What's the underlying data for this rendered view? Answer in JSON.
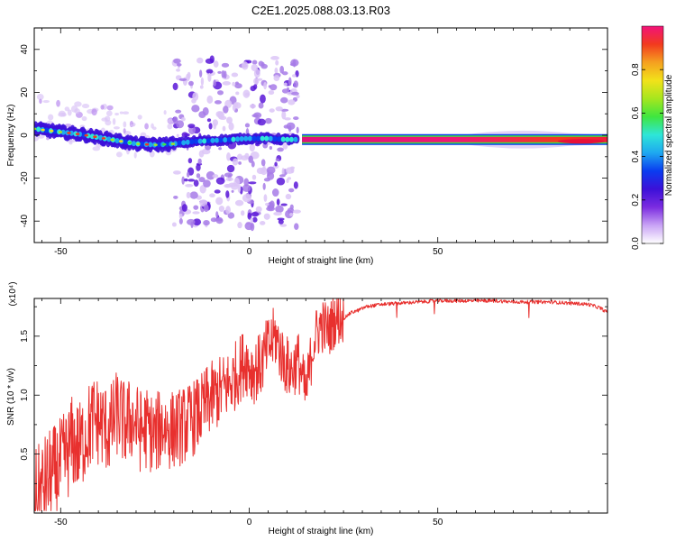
{
  "title": "C2E1.2025.088.03.13.R03",
  "colors": {
    "snr_line": "#e8302e",
    "axes": "#000000",
    "colormap": [
      "#ffffff",
      "#c9a3f5",
      "#7b2ce0",
      "#3c10d8",
      "#0a3cf0",
      "#1ea8f0",
      "#2ee6d8",
      "#3fe63f",
      "#a6e61e",
      "#f2e21a",
      "#f5a020",
      "#f23a1e",
      "#f2127a"
    ]
  },
  "chart_data": [
    {
      "type": "heatmap",
      "xlabel": "Height of straight line (km)",
      "ylabel": "Frequency (Hz)",
      "xlim": [
        -57,
        95
      ],
      "ylim": [
        -50,
        50
      ],
      "xticks": [
        -50,
        0,
        50
      ],
      "yticks": [
        -40,
        -20,
        0,
        20,
        40
      ],
      "grid": false,
      "colorbar": {
        "label": "Normalized spectral amplitude",
        "range": [
          0,
          1
        ],
        "ticks": [
          "0.0",
          "0.2",
          "0.4",
          "0.6",
          "0.8"
        ],
        "tick_values": [
          0,
          0.2,
          0.4,
          0.6,
          0.8
        ]
      },
      "ridge": {
        "x": [
          -57,
          -50,
          -45,
          -40,
          -35,
          -30,
          -25,
          -20,
          -15,
          -10,
          -5,
          0,
          5,
          10,
          13
        ],
        "freq": [
          3,
          1.5,
          0.5,
          -1,
          -2.5,
          -4,
          -4.5,
          -4,
          -3,
          -2.5,
          -2,
          -1.5,
          -1.5,
          -2,
          -2
        ]
      },
      "scatter_region": {
        "x_range": [
          -20,
          13
        ],
        "freq_range": [
          -43,
          37
        ]
      },
      "band": {
        "x_range": [
          14,
          95
        ],
        "freq": -2,
        "peak_x": [
          82,
          95
        ]
      }
    },
    {
      "type": "line",
      "xlabel": "Height of straight line (km)",
      "ylabel": "SNR (10 * v/v)",
      "y_multiplier": "(x10⁴)",
      "xlim": [
        -57,
        95
      ],
      "ylim": [
        0,
        1.82
      ],
      "xticks": [
        -50,
        0,
        50
      ],
      "yticks": [
        0.5,
        1.0,
        1.5
      ],
      "ytick_labels": [
        "0.5",
        "1.0",
        "1.5"
      ],
      "grid": false,
      "series": [
        {
          "x": [
            -57,
            -55,
            -53,
            -51,
            -49,
            -47,
            -45,
            -43,
            -41,
            -39,
            -37,
            -35,
            -33,
            -31,
            -29,
            -27,
            -25,
            -23,
            -21,
            -19,
            -17,
            -15,
            -13,
            -11,
            -9,
            -7,
            -5,
            -3,
            -1,
            1,
            3,
            5,
            7,
            9,
            11,
            13,
            15,
            17,
            19,
            21,
            23,
            25,
            27,
            29,
            31,
            33,
            35,
            40,
            45,
            50,
            55,
            60,
            65,
            70,
            75,
            80,
            85,
            90,
            93,
            95
          ],
          "y": [
            0.1,
            0.2,
            0.3,
            0.35,
            0.45,
            0.6,
            0.55,
            0.7,
            0.8,
            0.75,
            0.7,
            0.85,
            0.75,
            0.8,
            0.7,
            0.72,
            0.65,
            0.75,
            0.7,
            0.72,
            0.75,
            0.8,
            0.85,
            0.95,
            1.0,
            1.05,
            1.1,
            1.2,
            1.3,
            1.2,
            1.25,
            1.4,
            1.5,
            1.3,
            1.2,
            1.3,
            1.0,
            1.45,
            1.6,
            1.55,
            1.65,
            1.65,
            1.7,
            1.72,
            1.75,
            1.76,
            1.77,
            1.78,
            1.79,
            1.8,
            1.8,
            1.8,
            1.8,
            1.79,
            1.79,
            1.79,
            1.78,
            1.77,
            1.74,
            1.7
          ]
        }
      ]
    }
  ]
}
